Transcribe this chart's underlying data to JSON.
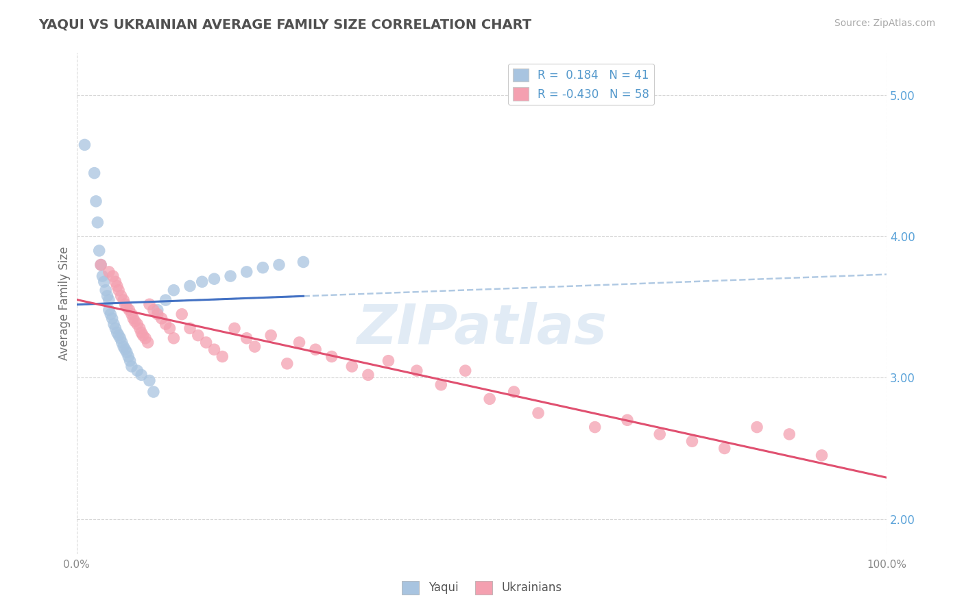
{
  "title": "YAQUI VS UKRAINIAN AVERAGE FAMILY SIZE CORRELATION CHART",
  "source": "Source: ZipAtlas.com",
  "ylabel": "Average Family Size",
  "xlim": [
    0,
    1
  ],
  "ylim": [
    1.75,
    5.3
  ],
  "yticks_right": [
    2.0,
    3.0,
    4.0,
    5.0
  ],
  "xtick_labels": [
    "0.0%",
    "100.0%"
  ],
  "legend_labels": [
    "Yaqui",
    "Ukrainians"
  ],
  "yaqui_R": 0.184,
  "yaqui_N": 41,
  "ukrainian_R": -0.43,
  "ukrainian_N": 58,
  "yaqui_color": "#a8c4e0",
  "ukrainian_color": "#f4a0b0",
  "yaqui_line_color": "#4472c4",
  "ukrainian_line_color": "#e05070",
  "background_color": "#ffffff",
  "grid_color": "#cccccc",
  "title_color": "#505050",
  "source_color": "#aaaaaa",
  "watermark": "ZIPatlas",
  "yaqui_x": [
    0.01,
    0.022,
    0.024,
    0.026,
    0.028,
    0.03,
    0.032,
    0.034,
    0.036,
    0.038,
    0.04,
    0.04,
    0.042,
    0.044,
    0.046,
    0.048,
    0.05,
    0.052,
    0.054,
    0.056,
    0.058,
    0.06,
    0.062,
    0.064,
    0.066,
    0.068,
    0.075,
    0.08,
    0.09,
    0.095,
    0.1,
    0.11,
    0.12,
    0.14,
    0.155,
    0.17,
    0.19,
    0.21,
    0.23,
    0.25,
    0.28
  ],
  "yaqui_y": [
    4.65,
    4.45,
    4.25,
    4.1,
    3.9,
    3.8,
    3.72,
    3.68,
    3.62,
    3.58,
    3.55,
    3.48,
    3.45,
    3.42,
    3.38,
    3.35,
    3.32,
    3.3,
    3.28,
    3.25,
    3.22,
    3.2,
    3.18,
    3.15,
    3.12,
    3.08,
    3.05,
    3.02,
    2.98,
    2.9,
    3.48,
    3.55,
    3.62,
    3.65,
    3.68,
    3.7,
    3.72,
    3.75,
    3.78,
    3.8,
    3.82
  ],
  "ukrainian_x": [
    0.03,
    0.04,
    0.045,
    0.048,
    0.05,
    0.052,
    0.055,
    0.058,
    0.06,
    0.062,
    0.065,
    0.068,
    0.07,
    0.072,
    0.075,
    0.078,
    0.08,
    0.082,
    0.085,
    0.088,
    0.09,
    0.095,
    0.1,
    0.105,
    0.11,
    0.115,
    0.12,
    0.13,
    0.14,
    0.15,
    0.16,
    0.17,
    0.18,
    0.195,
    0.21,
    0.22,
    0.24,
    0.26,
    0.275,
    0.295,
    0.315,
    0.34,
    0.36,
    0.385,
    0.42,
    0.45,
    0.48,
    0.51,
    0.54,
    0.57,
    0.64,
    0.68,
    0.72,
    0.76,
    0.8,
    0.84,
    0.88,
    0.92
  ],
  "ukrainian_y": [
    3.8,
    3.75,
    3.72,
    3.68,
    3.65,
    3.62,
    3.58,
    3.55,
    3.52,
    3.5,
    3.48,
    3.45,
    3.42,
    3.4,
    3.38,
    3.35,
    3.32,
    3.3,
    3.28,
    3.25,
    3.52,
    3.48,
    3.45,
    3.42,
    3.38,
    3.35,
    3.28,
    3.45,
    3.35,
    3.3,
    3.25,
    3.2,
    3.15,
    3.35,
    3.28,
    3.22,
    3.3,
    3.1,
    3.25,
    3.2,
    3.15,
    3.08,
    3.02,
    3.12,
    3.05,
    2.95,
    3.05,
    2.85,
    2.9,
    2.75,
    2.65,
    2.7,
    2.6,
    2.55,
    2.5,
    2.65,
    2.6,
    2.45
  ]
}
